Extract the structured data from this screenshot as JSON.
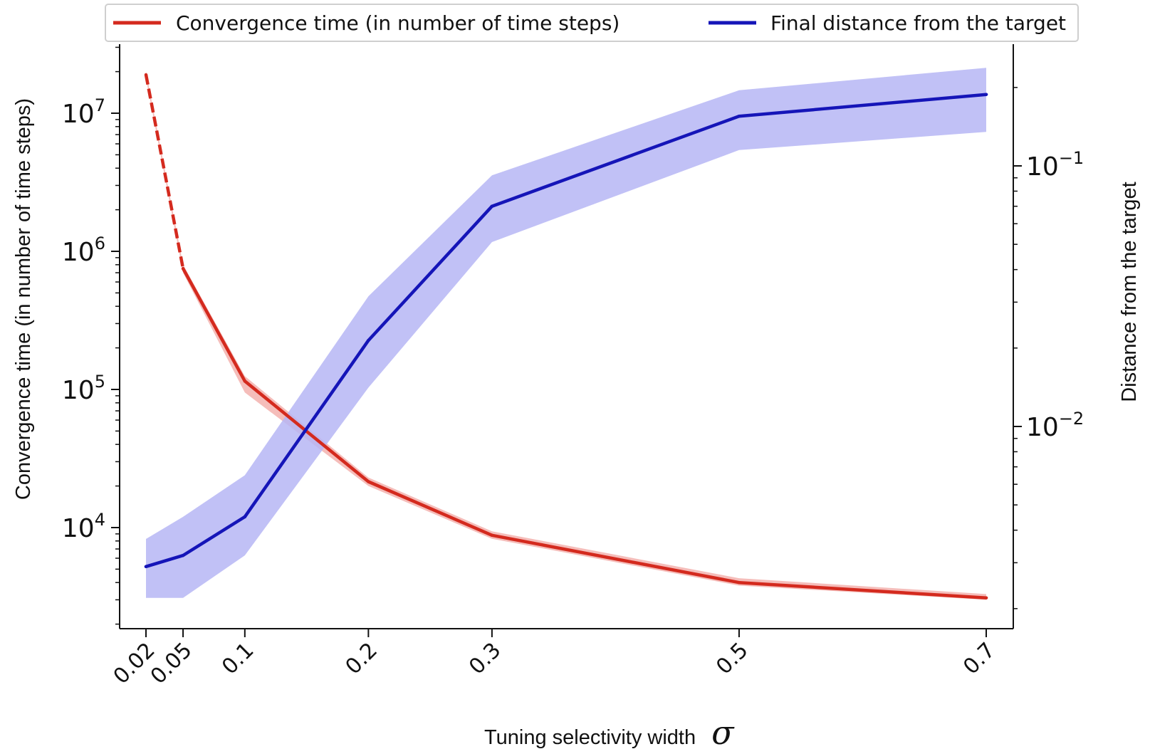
{
  "chart_data": {
    "type": "line",
    "x": [
      0.02,
      0.05,
      0.1,
      0.2,
      0.3,
      0.5,
      0.7
    ],
    "x_tick_labels": [
      "0.02",
      "0.05",
      "0.1",
      "0.2",
      "0.3",
      "0.5",
      "0.7"
    ],
    "xlabel": "Tuning selectivity  width",
    "xlabel_symbol": "σ",
    "y_left": {
      "label": "Convergence time (in number of time steps)",
      "scale": "log",
      "ticks": [
        {
          "value": 10000,
          "base": "10",
          "exp": "4"
        },
        {
          "value": 100000,
          "base": "10",
          "exp": "5"
        },
        {
          "value": 1000000,
          "base": "10",
          "exp": "6"
        },
        {
          "value": 10000000,
          "base": "10",
          "exp": "7"
        }
      ]
    },
    "y_right": {
      "label": "Distance from the target",
      "scale": "log",
      "ticks": [
        {
          "value": 0.01,
          "base": "10",
          "exp": "−2"
        },
        {
          "value": 0.1,
          "base": "10",
          "exp": "−1"
        }
      ]
    },
    "series": [
      {
        "name": "Convergence time (in number of time steps)",
        "axis": "left",
        "color": "#d42a1e",
        "band_color": "#f2a7a3",
        "dashed_segment_end_index": 1,
        "values": [
          19000000,
          750000,
          115000,
          21500,
          8800,
          4000,
          3100
        ],
        "lower": [
          18000000,
          700000,
          95000,
          20000,
          8300,
          3800,
          3000
        ],
        "upper": [
          20000000,
          800000,
          125000,
          23000,
          9400,
          4300,
          3300
        ]
      },
      {
        "name": "Final distance from the target",
        "axis": "right",
        "color": "#1515b8",
        "band_color": "#b6b6f5",
        "values": [
          0.0029,
          0.0032,
          0.0045,
          0.0214,
          0.07,
          0.155,
          0.188
        ],
        "lower": [
          0.0022,
          0.0022,
          0.0032,
          0.0141,
          0.051,
          0.115,
          0.135
        ],
        "upper": [
          0.0037,
          0.0045,
          0.0065,
          0.0316,
          0.092,
          0.195,
          0.238
        ]
      }
    ],
    "legend": "top, horizontal",
    "grid": false
  }
}
